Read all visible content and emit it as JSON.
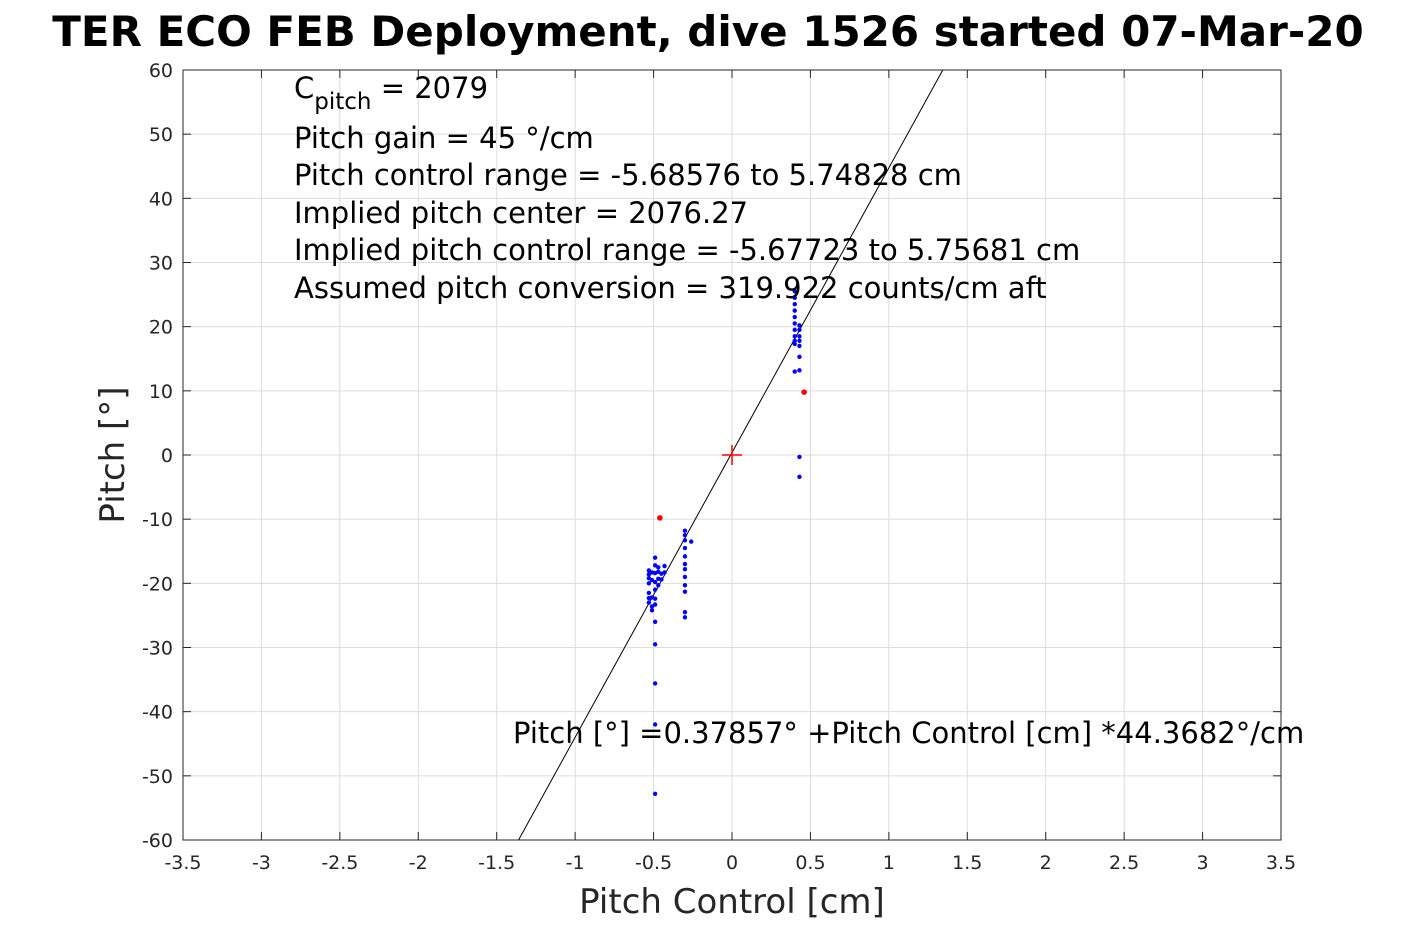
{
  "chart_data": {
    "type": "scatter",
    "title": "TER ECO FEB Deployment, dive 1526 started 07-Mar-20",
    "xlabel": "Pitch Control [cm]",
    "ylabel": "Pitch [°]",
    "xlim": [
      -3.5,
      3.5
    ],
    "ylim": [
      -60,
      60
    ],
    "x_ticks": [
      -3.5,
      -3,
      -2.5,
      -2,
      -1.5,
      -1,
      -0.5,
      0,
      0.5,
      1,
      1.5,
      2,
      2.5,
      3,
      3.5
    ],
    "y_ticks": [
      -60,
      -50,
      -40,
      -30,
      -20,
      -10,
      0,
      10,
      20,
      30,
      40,
      50,
      60
    ],
    "grid": true,
    "colors": {
      "points": "#0000ff",
      "outliers": "#ff0000",
      "center_marker": "#ff0000",
      "fit_line": "#000000"
    },
    "annotation_lines": [
      {
        "base": "C",
        "sub": "pitch",
        "rest": " = 2079"
      },
      {
        "text": "Pitch gain = 45 °/cm"
      },
      {
        "text": "Pitch control range = -5.68576 to 5.74828 cm"
      },
      {
        "text": "Implied pitch center = 2076.27"
      },
      {
        "text": "Implied pitch control range = -5.67723 to 5.75681 cm"
      },
      {
        "text": "Assumed pitch conversion = 319.922 counts/cm aft"
      }
    ],
    "fit_label": "Pitch [°] =0.37857° +Pitch Control [cm] *44.3682°/cm",
    "fit_line": {
      "intercept": 0.37857,
      "slope": 44.3682
    },
    "center_marker": {
      "x": 0,
      "y": 0
    },
    "series": [
      {
        "marker": "dot",
        "points": [
          [
            -0.53,
            -18
          ],
          [
            -0.53,
            -18.6
          ],
          [
            -0.53,
            -19.2
          ],
          [
            -0.53,
            -20
          ],
          [
            -0.53,
            -21.5
          ],
          [
            -0.53,
            -22.3
          ],
          [
            -0.53,
            -23
          ],
          [
            -0.51,
            -18.3
          ],
          [
            -0.51,
            -19.5
          ],
          [
            -0.51,
            -22.2
          ],
          [
            -0.51,
            -23.6
          ],
          [
            -0.51,
            -24.2
          ],
          [
            -0.49,
            -16
          ],
          [
            -0.49,
            -17.2
          ],
          [
            -0.49,
            -18.4
          ],
          [
            -0.49,
            -19.8
          ],
          [
            -0.49,
            -21
          ],
          [
            -0.49,
            -22.4
          ],
          [
            -0.49,
            -23.3
          ],
          [
            -0.49,
            -26
          ],
          [
            -0.49,
            -29.5
          ],
          [
            -0.49,
            -35.6
          ],
          [
            -0.49,
            -42
          ],
          [
            -0.49,
            -52.8
          ],
          [
            -0.47,
            -17.5
          ],
          [
            -0.47,
            -18.2
          ],
          [
            -0.47,
            -19.3
          ],
          [
            -0.47,
            -20.3
          ],
          [
            -0.45,
            -18.5
          ],
          [
            -0.45,
            -19.4
          ],
          [
            -0.43,
            -17.3
          ],
          [
            -0.43,
            -18.3
          ],
          [
            -0.3,
            -11.8
          ],
          [
            -0.3,
            -12.5
          ],
          [
            -0.3,
            -13.3
          ],
          [
            -0.3,
            -14.5
          ],
          [
            -0.3,
            -15.8
          ],
          [
            -0.3,
            -17
          ],
          [
            -0.3,
            -17.8
          ],
          [
            -0.3,
            -19
          ],
          [
            -0.3,
            -20.3
          ],
          [
            -0.3,
            -21.3
          ],
          [
            -0.3,
            -24.5
          ],
          [
            -0.3,
            -25.3
          ],
          [
            -0.26,
            -13.5
          ],
          [
            0.4,
            25.5
          ],
          [
            0.4,
            24.5
          ],
          [
            0.4,
            23.5
          ],
          [
            0.4,
            22.5
          ],
          [
            0.4,
            21.5
          ],
          [
            0.4,
            20.5
          ],
          [
            0.4,
            19.5
          ],
          [
            0.4,
            18.5
          ],
          [
            0.4,
            17.8
          ],
          [
            0.4,
            17.3
          ],
          [
            0.4,
            13
          ],
          [
            0.43,
            20.2
          ],
          [
            0.43,
            19.5
          ],
          [
            0.43,
            18.5
          ],
          [
            0.43,
            17.8
          ],
          [
            0.43,
            17
          ],
          [
            0.43,
            15.3
          ],
          [
            0.43,
            13.2
          ],
          [
            0.43,
            -0.3
          ],
          [
            0.43,
            -3.4
          ]
        ]
      },
      {
        "marker": "dot",
        "points": [
          [
            -0.46,
            -9.8
          ],
          [
            0.46,
            9.8
          ]
        ]
      }
    ]
  }
}
